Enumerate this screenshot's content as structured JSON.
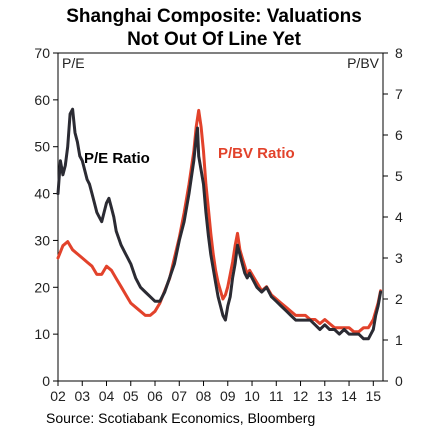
{
  "chart_data": {
    "type": "line",
    "title_line1": "Shanghai Composite: Valuations",
    "title_line2": "Not Out Of Line Yet",
    "ylabel_left": "P/E",
    "ylabel_right": "P/BV",
    "ylim_left": [
      0,
      70
    ],
    "ylim_right": [
      0,
      8
    ],
    "yticks_left": [
      "0",
      "10",
      "20",
      "30",
      "40",
      "50",
      "60",
      "70"
    ],
    "yticks_right": [
      "0",
      "1",
      "2",
      "3",
      "4",
      "5",
      "6",
      "7",
      "8"
    ],
    "xlim": [
      2002,
      2015.4
    ],
    "xticks": [
      "02",
      "03",
      "04",
      "05",
      "06",
      "07",
      "08",
      "09",
      "10",
      "11",
      "12",
      "13",
      "14",
      "15"
    ],
    "source": "Source: Scotiabank Economics, Bloomberg",
    "colors": {
      "pe": "#2b2b33",
      "pbv": "#e2422b"
    },
    "series": [
      {
        "name": "P/E Ratio",
        "axis": "left",
        "x": [
          2002.0,
          2002.1,
          2002.2,
          2002.3,
          2002.4,
          2002.5,
          2002.6,
          2002.7,
          2002.8,
          2002.9,
          2003.0,
          2003.1,
          2003.2,
          2003.3,
          2003.4,
          2003.5,
          2003.6,
          2003.7,
          2003.8,
          2003.9,
          2004.0,
          2004.1,
          2004.2,
          2004.3,
          2004.4,
          2004.6,
          2004.8,
          2005.0,
          2005.2,
          2005.4,
          2005.6,
          2005.8,
          2006.0,
          2006.2,
          2006.4,
          2006.6,
          2006.8,
          2007.0,
          2007.2,
          2007.4,
          2007.6,
          2007.7,
          2007.75,
          2007.8,
          2007.9,
          2008.0,
          2008.1,
          2008.2,
          2008.3,
          2008.4,
          2008.5,
          2008.6,
          2008.7,
          2008.8,
          2008.9,
          2009.0,
          2009.1,
          2009.2,
          2009.3,
          2009.4,
          2009.5,
          2009.6,
          2009.7,
          2009.8,
          2009.9,
          2010.0,
          2010.2,
          2010.4,
          2010.6,
          2010.8,
          2011.0,
          2011.2,
          2011.4,
          2011.6,
          2011.8,
          2012.0,
          2012.2,
          2012.4,
          2012.6,
          2012.8,
          2013.0,
          2013.2,
          2013.4,
          2013.6,
          2013.8,
          2014.0,
          2014.2,
          2014.4,
          2014.6,
          2014.8,
          2014.9,
          2015.0,
          2015.1,
          2015.2,
          2015.3
        ],
        "values": [
          40,
          47,
          44,
          46,
          50,
          57,
          58,
          53,
          51,
          48,
          47,
          45,
          43,
          42,
          40,
          38,
          36,
          35,
          34,
          36,
          38,
          39,
          37,
          35,
          32,
          29,
          27,
          25,
          22,
          20,
          19,
          18,
          17,
          17,
          19,
          22,
          25,
          30,
          34,
          40,
          47,
          52,
          54,
          48,
          45,
          42,
          36,
          31,
          27,
          24,
          21,
          18,
          16,
          14,
          13,
          16,
          18,
          22,
          25,
          29,
          27,
          25,
          23,
          22,
          23,
          22,
          20,
          19,
          20,
          18,
          17,
          16,
          15,
          14,
          13,
          13,
          13,
          13,
          12,
          11,
          12,
          11,
          11,
          10,
          11,
          10,
          10,
          10,
          9,
          9,
          10,
          11,
          14,
          16,
          19
        ]
      },
      {
        "name": "P/BV Ratio",
        "axis": "right",
        "x": [
          2002.0,
          2002.2,
          2002.4,
          2002.6,
          2002.8,
          2003.0,
          2003.2,
          2003.4,
          2003.6,
          2003.8,
          2004.0,
          2004.2,
          2004.4,
          2004.6,
          2004.8,
          2005.0,
          2005.2,
          2005.4,
          2005.6,
          2005.8,
          2006.0,
          2006.2,
          2006.4,
          2006.6,
          2006.8,
          2007.0,
          2007.2,
          2007.4,
          2007.6,
          2007.7,
          2007.8,
          2007.9,
          2008.0,
          2008.1,
          2008.2,
          2008.3,
          2008.4,
          2008.5,
          2008.6,
          2008.7,
          2008.8,
          2008.9,
          2009.0,
          2009.1,
          2009.2,
          2009.3,
          2009.4,
          2009.5,
          2009.6,
          2009.7,
          2009.8,
          2009.9,
          2010.0,
          2010.2,
          2010.4,
          2010.6,
          2010.8,
          2011.0,
          2011.2,
          2011.4,
          2011.6,
          2011.8,
          2012.0,
          2012.2,
          2012.4,
          2012.6,
          2012.8,
          2013.0,
          2013.2,
          2013.4,
          2013.6,
          2013.8,
          2014.0,
          2014.2,
          2014.4,
          2014.6,
          2014.8,
          2014.9,
          2015.0,
          2015.1,
          2015.2,
          2015.3
        ],
        "values": [
          3.0,
          3.3,
          3.4,
          3.2,
          3.1,
          3.0,
          2.9,
          2.8,
          2.6,
          2.6,
          2.8,
          2.7,
          2.5,
          2.3,
          2.1,
          1.9,
          1.8,
          1.7,
          1.6,
          1.6,
          1.7,
          1.9,
          2.2,
          2.5,
          3.0,
          3.5,
          4.1,
          4.8,
          5.6,
          6.2,
          6.6,
          6.2,
          5.6,
          4.8,
          4.2,
          3.6,
          3.1,
          2.7,
          2.4,
          2.2,
          2.0,
          2.1,
          2.3,
          2.6,
          2.9,
          3.3,
          3.6,
          3.2,
          3.0,
          2.8,
          2.6,
          2.7,
          2.6,
          2.4,
          2.2,
          2.3,
          2.1,
          2.0,
          1.9,
          1.8,
          1.7,
          1.6,
          1.6,
          1.6,
          1.5,
          1.5,
          1.4,
          1.5,
          1.4,
          1.3,
          1.3,
          1.3,
          1.3,
          1.2,
          1.2,
          1.3,
          1.3,
          1.4,
          1.5,
          1.7,
          1.9,
          2.2
        ]
      }
    ]
  }
}
